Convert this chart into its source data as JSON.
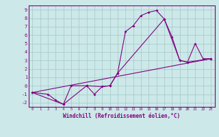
{
  "xlabel": "Windchill (Refroidissement éolien,°C)",
  "bg_color": "#cce8e8",
  "line_color": "#800080",
  "grid_color": "#aacccc",
  "xlim": [
    -0.5,
    23.5
  ],
  "ylim": [
    -2.5,
    9.5
  ],
  "xticks": [
    0,
    1,
    2,
    3,
    4,
    5,
    6,
    7,
    8,
    9,
    10,
    11,
    12,
    13,
    14,
    15,
    16,
    17,
    18,
    19,
    20,
    21,
    22,
    23
  ],
  "yticks": [
    -2,
    -1,
    0,
    1,
    2,
    3,
    4,
    5,
    6,
    7,
    8,
    9
  ],
  "series1_x": [
    0,
    2,
    3,
    4,
    5,
    7,
    8,
    9,
    10,
    11,
    12,
    13,
    14,
    15,
    16,
    17,
    18,
    19,
    20,
    21,
    22,
    23
  ],
  "series1_y": [
    -0.8,
    -1.0,
    -1.7,
    -2.2,
    0.0,
    0.0,
    -1.0,
    -0.1,
    0.0,
    1.5,
    6.4,
    7.1,
    8.3,
    8.7,
    8.9,
    7.9,
    5.8,
    3.0,
    2.8,
    5.0,
    3.2,
    3.2
  ],
  "series2_x": [
    0,
    23
  ],
  "series2_y": [
    -0.8,
    3.2
  ],
  "series3_x": [
    0,
    4,
    7,
    9,
    10,
    11,
    17,
    19,
    20,
    23
  ],
  "series3_y": [
    -0.8,
    -2.2,
    0.0,
    -0.1,
    0.0,
    1.5,
    7.9,
    3.0,
    2.8,
    3.2
  ]
}
